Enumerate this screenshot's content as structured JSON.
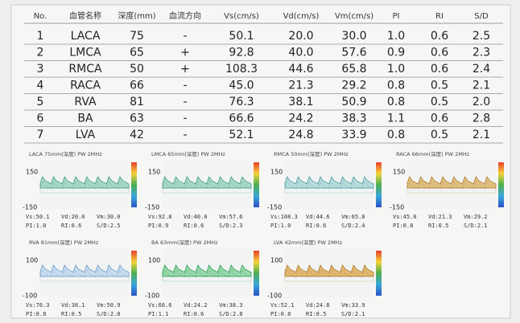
{
  "table": {
    "header": [
      "No.",
      "血管名称",
      "深度(mm)",
      "血流方向",
      "Vs(cm/s)",
      "Vd(cm/s)",
      "Vm(cm/s)",
      "PI",
      "RI",
      "S/D"
    ],
    "rows": [
      [
        "1",
        "LACA",
        "75",
        "-",
        "50.1",
        "20.0",
        "30.0",
        "1.0",
        "0.6",
        "2.5"
      ],
      [
        "2",
        "LMCA",
        "65",
        "+",
        "92.8",
        "40.0",
        "57.6",
        "0.9",
        "0.6",
        "2.3"
      ],
      [
        "3",
        "RMCA",
        "50",
        "+",
        "108.3",
        "44.6",
        "65.8",
        "1.0",
        "0.6",
        "2.4"
      ],
      [
        "4",
        "RACA",
        "66",
        "-",
        "45.0",
        "21.3",
        "29.2",
        "0.8",
        "0.5",
        "2.1"
      ],
      [
        "5",
        "RVA",
        "81",
        "-",
        "76.3",
        "38.1",
        "50.9",
        "0.8",
        "0.5",
        "2.0"
      ],
      [
        "6",
        "BA",
        "63",
        "-",
        "66.6",
        "24.2",
        "38.3",
        "1.1",
        "0.6",
        "2.8"
      ],
      [
        "7",
        "LVA",
        "42",
        "-",
        "52.1",
        "24.8",
        "33.9",
        "0.8",
        "0.5",
        "2.1"
      ]
    ]
  },
  "panels": [
    {
      "title": "LACA 75mm(深度) PW 2MHz",
      "top": "150",
      "bottom": "-150",
      "stats": [
        "Vs:50.1",
        "Vd:20.0",
        "Vm:30.0",
        "PI:1.0",
        "RI:0.6",
        "S/D:2.5"
      ]
    },
    {
      "title": "LMCA 65mm(深度) PW 2MHz",
      "top": "150",
      "bottom": "-150",
      "stats": [
        "Vs:92.8",
        "Vd:40.0",
        "Vm:57.6",
        "PI:0.9",
        "RI:0.6",
        "S/D:2.3"
      ]
    },
    {
      "title": "RMCA 50mm(深度) PW 2MHz",
      "top": "150",
      "bottom": "-150",
      "stats": [
        "Vs:108.3",
        "Vd:44.6",
        "Vm:65.8",
        "PI:1.0",
        "RI:0.6",
        "S/D:2.4"
      ]
    },
    {
      "title": "RACA 66mm(深度) PW 2MHz",
      "top": "150",
      "bottom": "-150",
      "stats": [
        "Vs:45.0",
        "Vd:21.3",
        "Vm:29.2",
        "PI:0.8",
        "RI:0.5",
        "S/D:2.1"
      ]
    },
    {
      "title": "RVA 81mm(深度) PW 2MHz",
      "top": "100",
      "bottom": "-100",
      "stats": [
        "Vs:76.3",
        "Vd:38.1",
        "Vm:50.9",
        "PI:0.8",
        "RI:0.5",
        "S/D:2.0"
      ]
    },
    {
      "title": "BA 63mm(深度) PW 2MHz",
      "top": "100",
      "bottom": "-100",
      "stats": [
        "Vs:66.6",
        "Vd:24.2",
        "Vm:38.3",
        "PI:1.1",
        "RI:0.6",
        "S/D:2.8"
      ]
    },
    {
      "title": "LVA 42mm(深度) PW 2MHz",
      "top": "100",
      "bottom": "-100",
      "stats": [
        "Vs:52.1",
        "Vd:24.8",
        "Vm:33.9",
        "PI:0.8",
        "RI:0.5",
        "S/D:2.1"
      ]
    }
  ]
}
